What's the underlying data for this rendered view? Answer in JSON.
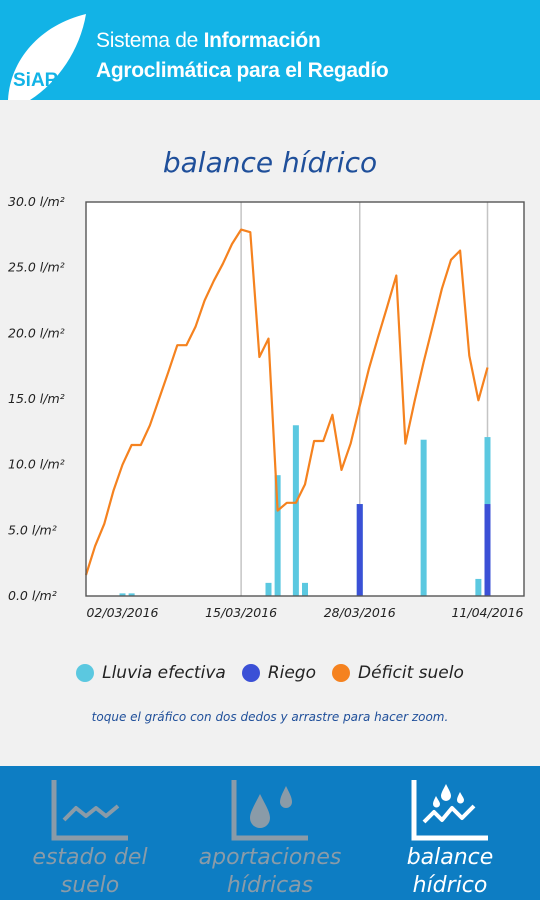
{
  "header": {
    "logo_text": "SiAR",
    "title_line1_light": "Sistema de",
    "title_line1_bold": "Información",
    "title_line2": "Agroclimática para el Regadío"
  },
  "page_title": "balance hídrico",
  "chart_data": {
    "type": "bar+line",
    "title": "",
    "y_unit": "l/m²",
    "ylim": [
      0,
      30
    ],
    "y_ticks": [
      "0.0 l/m²",
      "5.0 l/m²",
      "10.0 l/m²",
      "15.0 l/m²",
      "20.0 l/m²",
      "25.0 l/m²",
      "30.0 l/m²"
    ],
    "x_range": [
      "2016-02-27",
      "2016-04-15"
    ],
    "x_ticks": [
      "02/03/2016",
      "15/03/2016",
      "28/03/2016",
      "11/04/2016"
    ],
    "x_tick_dates": [
      "2016-03-02",
      "2016-03-15",
      "2016-03-28",
      "2016-04-11"
    ],
    "vertical_gridlines_at": [
      "2016-03-15",
      "2016-03-28",
      "2016-04-11"
    ],
    "series": [
      {
        "name": "Lluvia efectiva",
        "kind": "bar",
        "color": "#5bc8e0",
        "points": [
          [
            "2016-03-02",
            0.2
          ],
          [
            "2016-03-03",
            0.2
          ],
          [
            "2016-03-18",
            1.0
          ],
          [
            "2016-03-19",
            9.2
          ],
          [
            "2016-03-21",
            13.0
          ],
          [
            "2016-03-22",
            1.0
          ],
          [
            "2016-03-28",
            7.0
          ],
          [
            "2016-04-04",
            11.9
          ],
          [
            "2016-04-10",
            1.3
          ],
          [
            "2016-04-11",
            12.1
          ]
        ]
      },
      {
        "name": "Riego",
        "kind": "bar",
        "color": "#3b50d6",
        "points": [
          [
            "2016-03-28",
            7.0
          ],
          [
            "2016-04-11",
            7.0
          ]
        ]
      },
      {
        "name": "Déficit suelo",
        "kind": "line",
        "color": "#f5821f",
        "points": [
          [
            "2016-02-27",
            1.6
          ],
          [
            "2016-02-28",
            3.8
          ],
          [
            "2016-02-29",
            5.5
          ],
          [
            "2016-03-01",
            8.0
          ],
          [
            "2016-03-02",
            10.0
          ],
          [
            "2016-03-03",
            11.5
          ],
          [
            "2016-03-04",
            11.5
          ],
          [
            "2016-03-05",
            13.0
          ],
          [
            "2016-03-06",
            15.0
          ],
          [
            "2016-03-07",
            17.0
          ],
          [
            "2016-03-08",
            19.1
          ],
          [
            "2016-03-09",
            19.1
          ],
          [
            "2016-03-10",
            20.5
          ],
          [
            "2016-03-11",
            22.5
          ],
          [
            "2016-03-12",
            24.0
          ],
          [
            "2016-03-13",
            25.3
          ],
          [
            "2016-03-14",
            26.8
          ],
          [
            "2016-03-15",
            27.9
          ],
          [
            "2016-03-16",
            27.7
          ],
          [
            "2016-03-17",
            18.2
          ],
          [
            "2016-03-18",
            19.6
          ],
          [
            "2016-03-19",
            6.5
          ],
          [
            "2016-03-20",
            7.1
          ],
          [
            "2016-03-21",
            7.1
          ],
          [
            "2016-03-22",
            8.5
          ],
          [
            "2016-03-23",
            11.8
          ],
          [
            "2016-03-24",
            11.8
          ],
          [
            "2016-03-25",
            13.8
          ],
          [
            "2016-03-26",
            9.6
          ],
          [
            "2016-03-27",
            11.6
          ],
          [
            "2016-03-28",
            14.5
          ],
          [
            "2016-03-29",
            17.3
          ],
          [
            "2016-03-30",
            19.7
          ],
          [
            "2016-03-31",
            22.0
          ],
          [
            "2016-04-01",
            24.4
          ],
          [
            "2016-04-02",
            11.6
          ],
          [
            "2016-04-03",
            14.8
          ],
          [
            "2016-04-04",
            17.8
          ],
          [
            "2016-04-05",
            20.6
          ],
          [
            "2016-04-06",
            23.4
          ],
          [
            "2016-04-07",
            25.6
          ],
          [
            "2016-04-08",
            26.3
          ],
          [
            "2016-04-09",
            18.3
          ],
          [
            "2016-04-10",
            14.9
          ],
          [
            "2016-04-11",
            17.4
          ]
        ]
      }
    ],
    "legend_position": "bottom"
  },
  "legend": [
    {
      "label": "Lluvia efectiva",
      "color": "#5bc8e0"
    },
    {
      "label": "Riego",
      "color": "#3b50d6"
    },
    {
      "label": "Déficit suelo",
      "color": "#f5821f"
    }
  ],
  "hint": "toque el gráfico con dos dedos y arrastre para hacer zoom.",
  "nav": [
    {
      "label": "estado del\nsuelo",
      "icon": "soil-state-chart-icon",
      "active": false
    },
    {
      "label": "aportaciones\nhídricas",
      "icon": "water-drops-chart-icon",
      "active": false
    },
    {
      "label": "balance\nhídrico",
      "icon": "water-balance-chart-icon",
      "active": true
    }
  ]
}
